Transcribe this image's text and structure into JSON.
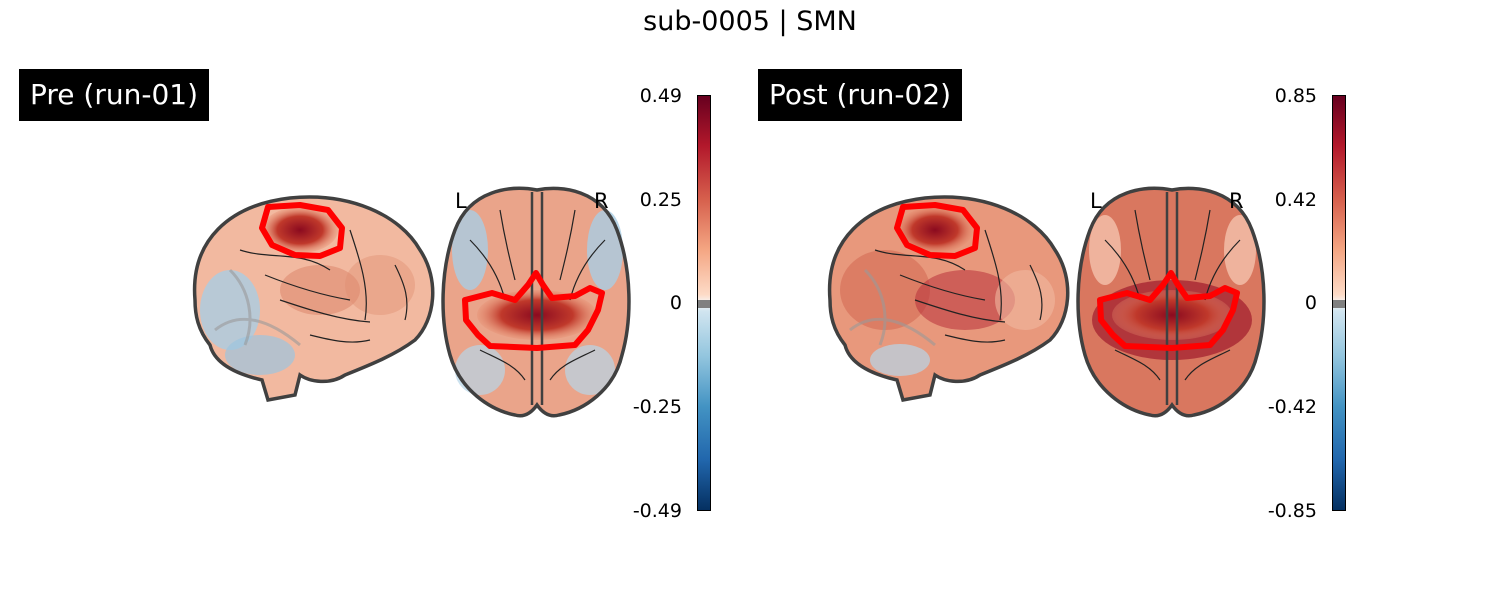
{
  "figure_title": "sub-0005 | SMN",
  "panels": [
    {
      "label": "Pre (run-01)",
      "left_letter": "L",
      "right_letter": "R",
      "colorbar": {
        "colormap": "RdBu_r",
        "ticks": [
          "0.49",
          "0.25",
          "0",
          "-0.25",
          "-0.49"
        ],
        "vmin": -0.49,
        "vmax": 0.49
      }
    },
    {
      "label": "Post (run-02)",
      "left_letter": "L",
      "right_letter": "R",
      "colorbar": {
        "colormap": "RdBu_r",
        "ticks": [
          "0.85",
          "0.42",
          "0",
          "-0.42",
          "-0.85"
        ],
        "vmin": -0.85,
        "vmax": 0.85
      }
    }
  ],
  "colors": {
    "roi_outline": "#ff0000",
    "brain_outline": "#404040",
    "cbar_top": "#67001f",
    "cbar_bottom": "#053061",
    "neutral": "#808080"
  }
}
